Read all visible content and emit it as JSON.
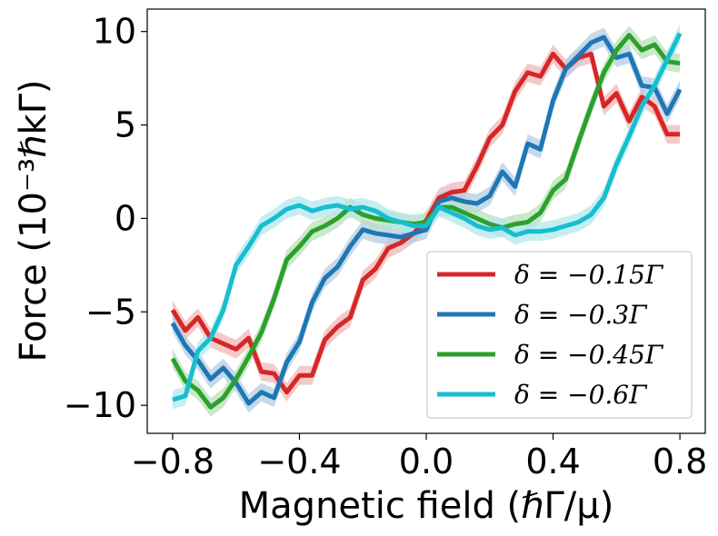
{
  "chart_data": {
    "type": "line",
    "title": "",
    "xlabel": "Magnetic field (ℏΓ/μ)",
    "ylabel": "Force (10⁻³ℏkΓ)",
    "xlim": [
      -0.88,
      0.88
    ],
    "ylim": [
      -11.5,
      11.2
    ],
    "xticks": [
      -0.8,
      -0.4,
      0.0,
      0.4,
      0.8
    ],
    "xtick_labels": [
      "−0.8",
      "−0.4",
      "0.0",
      "0.4",
      "0.8"
    ],
    "yticks": [
      -10,
      -5,
      0,
      5,
      10
    ],
    "ytick_labels": [
      "−10",
      "−5",
      "0",
      "5",
      "10"
    ],
    "grid": false,
    "legend_position": "lower-right",
    "x": [
      -0.8,
      -0.76,
      -0.72,
      -0.68,
      -0.64,
      -0.6,
      -0.56,
      -0.52,
      -0.48,
      -0.44,
      -0.4,
      -0.36,
      -0.32,
      -0.28,
      -0.24,
      -0.2,
      -0.16,
      -0.12,
      -0.08,
      -0.04,
      0.0,
      0.04,
      0.08,
      0.12,
      0.16,
      0.2,
      0.24,
      0.28,
      0.32,
      0.36,
      0.4,
      0.44,
      0.48,
      0.52,
      0.56,
      0.6,
      0.64,
      0.68,
      0.72,
      0.76,
      0.8
    ],
    "series": [
      {
        "name": "δ = −0.15Γ",
        "color": "#d62728",
        "band_color": "#f3b7b7",
        "values": [
          -4.9,
          -6.0,
          -5.3,
          -6.4,
          -6.7,
          -7.0,
          -6.4,
          -8.2,
          -8.3,
          -9.3,
          -8.4,
          -8.4,
          -6.5,
          -5.8,
          -5.3,
          -3.3,
          -2.7,
          -1.6,
          -1.3,
          -0.8,
          -0.1,
          1.1,
          1.4,
          1.5,
          2.8,
          4.3,
          5.0,
          6.8,
          7.8,
          7.6,
          8.8,
          8.0,
          8.6,
          8.8,
          6.0,
          6.7,
          5.2,
          6.5,
          6.0,
          4.5,
          4.5
        ]
      },
      {
        "name": "δ = −0.3Γ",
        "color": "#1f77b4",
        "band_color": "#b3cde6",
        "values": [
          -5.6,
          -6.8,
          -7.6,
          -8.6,
          -8.0,
          -8.8,
          -9.9,
          -9.3,
          -9.6,
          -7.7,
          -6.6,
          -4.5,
          -3.2,
          -2.6,
          -1.5,
          -0.6,
          -0.8,
          -0.9,
          -1.0,
          -0.8,
          -0.6,
          0.9,
          1.1,
          0.9,
          0.8,
          1.2,
          2.5,
          1.7,
          4.0,
          3.7,
          6.3,
          8.0,
          8.7,
          9.4,
          9.7,
          8.6,
          8.8,
          7.1,
          7.0,
          5.6,
          6.9
        ]
      },
      {
        "name": "δ = −0.45Γ",
        "color": "#2ca02c",
        "band_color": "#b8e0b8",
        "values": [
          -7.5,
          -8.7,
          -9.2,
          -10.1,
          -9.6,
          -8.6,
          -7.4,
          -6.1,
          -4.3,
          -2.2,
          -1.5,
          -0.7,
          -0.4,
          0.0,
          0.6,
          0.2,
          0.0,
          -0.1,
          -0.2,
          -0.3,
          -0.2,
          0.6,
          0.6,
          0.3,
          0.0,
          -0.3,
          -0.5,
          -0.3,
          -0.2,
          0.3,
          1.5,
          2.1,
          4.1,
          6.0,
          7.8,
          9.0,
          9.8,
          9.0,
          9.3,
          8.4,
          8.3
        ]
      },
      {
        "name": "δ = −0.6Γ",
        "color": "#17becf",
        "band_color": "#b2e8ee",
        "values": [
          -9.7,
          -9.5,
          -7.1,
          -6.4,
          -4.9,
          -2.5,
          -1.5,
          -0.4,
          0.0,
          0.5,
          0.7,
          0.4,
          0.6,
          0.7,
          0.5,
          0.6,
          0.4,
          0.0,
          -0.2,
          -0.4,
          -0.4,
          0.6,
          0.3,
          0.0,
          -0.4,
          -0.6,
          -0.5,
          -0.9,
          -0.7,
          -0.7,
          -0.6,
          -0.4,
          -0.2,
          0.2,
          1.1,
          2.9,
          4.4,
          6.0,
          7.1,
          8.5,
          9.9
        ]
      }
    ]
  }
}
